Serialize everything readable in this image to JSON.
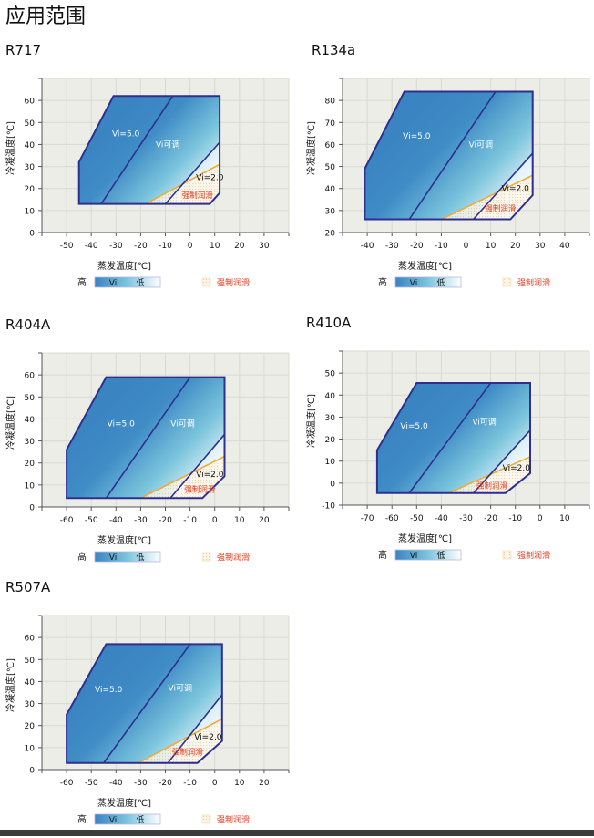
{
  "page_title": "应用范围",
  "colors": {
    "envelope_stroke": "#2e2f8f",
    "gradient_dark": "#3a84c2",
    "gradient_mid": "#7cc5dd",
    "gradient_light": "#ffffff",
    "lube_line": "#f0a830",
    "lube_text": "#e8391e",
    "plot_bg": "#ecede7",
    "grid": "#d9dad3"
  },
  "legend": {
    "high": "高",
    "vi": "Vi",
    "low": "低",
    "lube": "强制润滑"
  },
  "chart_data": [
    {
      "type": "area",
      "title": "R717",
      "xlabel": "蒸发温度[℃]",
      "ylabel": "冷凝温度[℃]",
      "xlim": [
        -60,
        40
      ],
      "ylim": [
        0,
        70
      ],
      "grid": true,
      "xticks": [
        -50,
        -40,
        -30,
        -20,
        -10,
        0,
        10,
        20,
        30
      ],
      "yticks": [
        0,
        10,
        20,
        30,
        40,
        50,
        60
      ],
      "envelope": [
        [
          -45,
          13
        ],
        [
          -45,
          32
        ],
        [
          -31,
          62
        ],
        [
          12,
          62
        ],
        [
          12,
          18
        ],
        [
          8,
          13
        ]
      ],
      "vi5_boundary": [
        [
          -36,
          13
        ],
        [
          -7,
          62
        ]
      ],
      "vi2_boundary": [
        [
          -10,
          13
        ],
        [
          12,
          41
        ]
      ],
      "lube_line": [
        [
          -18,
          13
        ],
        [
          12,
          31
        ]
      ],
      "annotations": [
        {
          "text": "Vi=5.0",
          "x": -26,
          "y": 45
        },
        {
          "text": "Vi可调",
          "x": -9,
          "y": 40
        },
        {
          "text": "Vi=2.0",
          "x": 8,
          "y": 25
        },
        {
          "text": "强制润滑",
          "x": 3,
          "y": 17
        }
      ]
    },
    {
      "type": "area",
      "title": "R134a",
      "xlabel": "蒸发温度[℃]",
      "ylabel": "冷凝温度[℃]",
      "xlim": [
        -50,
        50
      ],
      "ylim": [
        20,
        90
      ],
      "grid": true,
      "xticks": [
        -40,
        -30,
        -20,
        -10,
        0,
        10,
        20,
        30,
        40
      ],
      "yticks": [
        20,
        30,
        40,
        50,
        60,
        70,
        80
      ],
      "envelope": [
        [
          -41,
          26
        ],
        [
          -41,
          49
        ],
        [
          -25,
          84
        ],
        [
          27,
          84
        ],
        [
          27,
          37
        ],
        [
          18,
          26
        ]
      ],
      "vi5_boundary": [
        [
          -23,
          26
        ],
        [
          12,
          84
        ]
      ],
      "vi2_boundary": [
        [
          3,
          26
        ],
        [
          27,
          56
        ]
      ],
      "lube_line": [
        [
          -10,
          26
        ],
        [
          27,
          46
        ]
      ],
      "annotations": [
        {
          "text": "Vi=5.0",
          "x": -20,
          "y": 64
        },
        {
          "text": "Vi可调",
          "x": 6,
          "y": 60
        },
        {
          "text": "Vi=2.0",
          "x": 20,
          "y": 40
        },
        {
          "text": "强制润滑",
          "x": 14,
          "y": 31
        }
      ]
    },
    {
      "type": "area",
      "title": "R404A",
      "xlabel": "蒸发温度[℃]",
      "ylabel": "冷凝温度[℃]",
      "xlim": [
        -70,
        30
      ],
      "ylim": [
        0,
        70
      ],
      "grid": true,
      "xticks": [
        -60,
        -50,
        -40,
        -30,
        -20,
        -10,
        0,
        10,
        20
      ],
      "yticks": [
        0,
        10,
        20,
        30,
        40,
        50,
        60
      ],
      "envelope": [
        [
          -60,
          4
        ],
        [
          -60,
          26
        ],
        [
          -44,
          59
        ],
        [
          4,
          59
        ],
        [
          4,
          14
        ],
        [
          -5,
          4
        ]
      ],
      "vi5_boundary": [
        [
          -44,
          4
        ],
        [
          -10,
          59
        ]
      ],
      "vi2_boundary": [
        [
          -18,
          4
        ],
        [
          4,
          33
        ]
      ],
      "lube_line": [
        [
          -30,
          4
        ],
        [
          4,
          23
        ]
      ],
      "annotations": [
        {
          "text": "Vi=5.0",
          "x": -38,
          "y": 38
        },
        {
          "text": "Vi可调",
          "x": -13,
          "y": 38
        },
        {
          "text": "Vi=2.0",
          "x": -2,
          "y": 15
        },
        {
          "text": "强制润滑",
          "x": -6,
          "y": 8
        }
      ]
    },
    {
      "type": "area",
      "title": "R410A",
      "xlabel": "蒸发温度[℃]",
      "ylabel": "冷凝温度[℃]",
      "xlim": [
        -80,
        20
      ],
      "ylim": [
        -10,
        60
      ],
      "grid": true,
      "xticks": [
        -70,
        -60,
        -50,
        -40,
        -30,
        -20,
        -10,
        0,
        10
      ],
      "yticks": [
        -10,
        0,
        10,
        20,
        30,
        40,
        50
      ],
      "envelope": [
        [
          -66,
          -4.5
        ],
        [
          -66,
          15
        ],
        [
          -50,
          45.5
        ],
        [
          -4,
          45.5
        ],
        [
          -4,
          4.5
        ],
        [
          -14,
          -4.5
        ]
      ],
      "vi5_boundary": [
        [
          -53,
          -4.5
        ],
        [
          -20,
          45.5
        ]
      ],
      "vi2_boundary": [
        [
          -27,
          -4.5
        ],
        [
          -4,
          24
        ]
      ],
      "lube_line": [
        [
          -37,
          -4.5
        ],
        [
          -4,
          12
        ]
      ],
      "annotations": [
        {
          "text": "Vi=5.0",
          "x": -51,
          "y": 26
        },
        {
          "text": "Vi可调",
          "x": -22.6,
          "y": 28
        },
        {
          "text": "Vi=2.0",
          "x": -9.6,
          "y": 7
        },
        {
          "text": "强制润滑",
          "x": -19.5,
          "y": -1
        }
      ]
    },
    {
      "type": "area",
      "title": "R507A",
      "xlabel": "蒸发温度[℃]",
      "ylabel": "冷凝温度[℃]",
      "xlim": [
        -70,
        30
      ],
      "ylim": [
        0,
        70
      ],
      "grid": true,
      "xticks": [
        -60,
        -50,
        -40,
        -30,
        -20,
        -10,
        0,
        10,
        20
      ],
      "yticks": [
        0,
        10,
        20,
        30,
        40,
        50,
        60
      ],
      "envelope": [
        [
          -60,
          3
        ],
        [
          -60,
          25
        ],
        [
          -44,
          57
        ],
        [
          3,
          57
        ],
        [
          3,
          13
        ],
        [
          -7,
          3
        ]
      ],
      "vi5_boundary": [
        [
          -45,
          3
        ],
        [
          -10,
          57
        ]
      ],
      "vi2_boundary": [
        [
          -19,
          3
        ],
        [
          3,
          34
        ]
      ],
      "lube_line": [
        [
          -31,
          3
        ],
        [
          3,
          23
        ]
      ],
      "annotations": [
        {
          "text": "Vi=5.0",
          "x": -43,
          "y": 36.5
        },
        {
          "text": "Vi可调",
          "x": -14,
          "y": 37
        },
        {
          "text": "Vi=2.0",
          "x": -2.7,
          "y": 15
        },
        {
          "text": "强制润滑",
          "x": -11,
          "y": 8
        }
      ]
    }
  ]
}
